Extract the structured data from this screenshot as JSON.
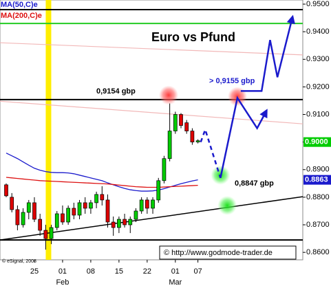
{
  "chart_data": {
    "type": "candlestick",
    "title": "Euro vs Pfund",
    "xlim": [
      -1.1,
      52.6
    ],
    "ylim": [
      0.8573,
      0.9515
    ],
    "yticks": [
      {
        "value": 0.95,
        "label": "0.9500"
      },
      {
        "value": 0.94,
        "label": "0.9400"
      },
      {
        "value": 0.93,
        "label": "0.9300"
      },
      {
        "value": 0.92,
        "label": "0.9200"
      },
      {
        "value": 0.91,
        "label": "0.9100"
      },
      {
        "value": 0.9,
        "label": "0.9000"
      },
      {
        "value": 0.89,
        "label": "0.8900"
      },
      {
        "value": 0.88,
        "label": "0.8800"
      },
      {
        "value": 0.87,
        "label": "0.8700"
      },
      {
        "value": 0.86,
        "label": "0.8600"
      }
    ],
    "xticks": [
      {
        "value": 5,
        "label": "25"
      },
      {
        "value": 10,
        "label": "01"
      },
      {
        "value": 15,
        "label": "08"
      },
      {
        "value": 20,
        "label": "15"
      },
      {
        "value": 25,
        "label": "22"
      },
      {
        "value": 30,
        "label": "01"
      },
      {
        "value": 34,
        "label": "07"
      }
    ],
    "month_labels": [
      {
        "value": 10,
        "label": "Feb"
      },
      {
        "value": 30,
        "label": "Mar"
      }
    ],
    "up_color": "#00cc00",
    "down_color": "#dd0000",
    "ohlc": {
      "open": [
        0.8845,
        0.88,
        0.8755,
        0.87,
        0.8745,
        0.878,
        0.872,
        0.868,
        0.865,
        0.869,
        0.874,
        0.871,
        0.876,
        0.8735,
        0.878,
        0.876,
        0.878,
        0.881,
        0.879,
        0.871,
        0.869,
        0.872,
        0.87,
        0.872,
        0.875,
        0.879,
        0.876,
        0.879,
        0.886,
        0.894,
        0.904,
        0.91,
        0.907,
        0.904,
        0.9
      ],
      "high": [
        0.885,
        0.8815,
        0.877,
        0.876,
        0.879,
        0.88,
        0.874,
        0.87,
        0.87,
        0.875,
        0.877,
        0.877,
        0.878,
        0.879,
        0.88,
        0.879,
        0.882,
        0.884,
        0.881,
        0.873,
        0.873,
        0.874,
        0.873,
        0.876,
        0.88,
        0.88,
        0.88,
        0.887,
        0.895,
        0.914,
        0.911,
        0.9105,
        0.908,
        0.905,
        0.901
      ],
      "low": [
        0.88,
        0.8745,
        0.868,
        0.869,
        0.872,
        0.871,
        0.866,
        0.861,
        0.863,
        0.868,
        0.87,
        0.87,
        0.872,
        0.872,
        0.874,
        0.874,
        0.876,
        0.877,
        0.869,
        0.866,
        0.867,
        0.869,
        0.867,
        0.871,
        0.874,
        0.874,
        0.874,
        0.878,
        0.885,
        0.893,
        0.903,
        0.905,
        0.903,
        0.899,
        0.8995
      ],
      "close": [
        0.8805,
        0.8755,
        0.87,
        0.8745,
        0.878,
        0.872,
        0.868,
        0.865,
        0.869,
        0.874,
        0.871,
        0.876,
        0.8735,
        0.878,
        0.876,
        0.878,
        0.881,
        0.879,
        0.871,
        0.869,
        0.872,
        0.87,
        0.872,
        0.875,
        0.879,
        0.876,
        0.879,
        0.886,
        0.894,
        0.904,
        0.91,
        0.906,
        0.904,
        0.9,
        0.9005
      ]
    },
    "series": [
      {
        "name": "MA(50,C)e",
        "color": "#1a1acc",
        "values": [
          0.896,
          0.895,
          0.894,
          0.8928,
          0.8916,
          0.8905,
          0.8898,
          0.8893,
          0.889,
          0.8889,
          0.8889,
          0.8888,
          0.8885,
          0.888,
          0.8875,
          0.887,
          0.8865,
          0.886,
          0.8852,
          0.8845,
          0.8838,
          0.8832,
          0.8827,
          0.8824,
          0.8822,
          0.8822,
          0.8823,
          0.8826,
          0.8831,
          0.8837,
          0.8843,
          0.8849,
          0.8854,
          0.8859,
          0.8863
        ]
      },
      {
        "name": "MA(200,C)e",
        "color": "#dd1111",
        "values": [
          0.8872,
          0.887,
          0.8868,
          0.8866,
          0.8864,
          0.8862,
          0.886,
          0.8859,
          0.8858,
          0.8857,
          0.8856,
          0.8855,
          0.8854,
          0.8853,
          0.8852,
          0.8851,
          0.885,
          0.8849,
          0.8848,
          0.8846,
          0.8844,
          0.8842,
          0.884,
          0.8838,
          0.8837,
          0.8836,
          0.8836,
          0.8836,
          0.8837,
          0.8838,
          0.8839,
          0.884,
          0.8841,
          0.8842,
          0.8843
        ]
      }
    ],
    "levels": [
      {
        "value": 0.948,
        "color": "#000000"
      },
      {
        "value": 0.943,
        "color": "#22cc22"
      },
      {
        "value": 0.9154,
        "color": "#000000"
      },
      {
        "value": 0.8645,
        "color": "#000000"
      }
    ],
    "trendlines": [
      {
        "x": [
          -1.1,
          52.6
        ],
        "y": [
          0.936,
          0.9316
        ],
        "color": "#f2b8b8"
      },
      {
        "x": [
          -1.1,
          52.6
        ],
        "y": [
          0.9148,
          0.9066
        ],
        "color": "#f2b8b8"
      },
      {
        "x": [
          -1.1,
          52.6
        ],
        "y": [
          0.8645,
          0.8802
        ],
        "color": "#000000"
      }
    ],
    "highlight_x": 7.5,
    "projections": [
      {
        "x": [
          34.5,
          35.3,
          38
        ],
        "y": [
          0.9,
          0.9045,
          0.887
        ],
        "dashed": true
      },
      {
        "x": [
          38,
          41,
          44.5,
          46.2
        ],
        "y": [
          0.887,
          0.916,
          0.905,
          0.9115
        ],
        "dashed": false
      },
      {
        "x": [
          41.6,
          45.3,
          46.8,
          48.1,
          50.8
        ],
        "y": [
          0.9185,
          0.9185,
          0.937,
          0.9235,
          0.9455
        ],
        "dashed": false
      }
    ],
    "projection_color": "#1a1acc",
    "circles": [
      {
        "x": 28.8,
        "y": 0.917,
        "color": "red"
      },
      {
        "x": 41,
        "y": 0.9165,
        "color": "red"
      },
      {
        "x": 38,
        "y": 0.888,
        "color": "green"
      },
      {
        "x": 39.2,
        "y": 0.877,
        "color": "green"
      }
    ],
    "annotations": [
      "0,9154 gbp",
      "> 0,9155 gbp",
      "0,8847 gbp"
    ],
    "tags": [
      {
        "value": 0.9,
        "label": "0.9000",
        "color": "#00cc00"
      },
      {
        "value": 0.8863,
        "label": "0.8863",
        "color": "#1a1acc"
      }
    ],
    "source": "© http://www.godmode-trader.de",
    "credit": "© eSignal, 2008"
  }
}
